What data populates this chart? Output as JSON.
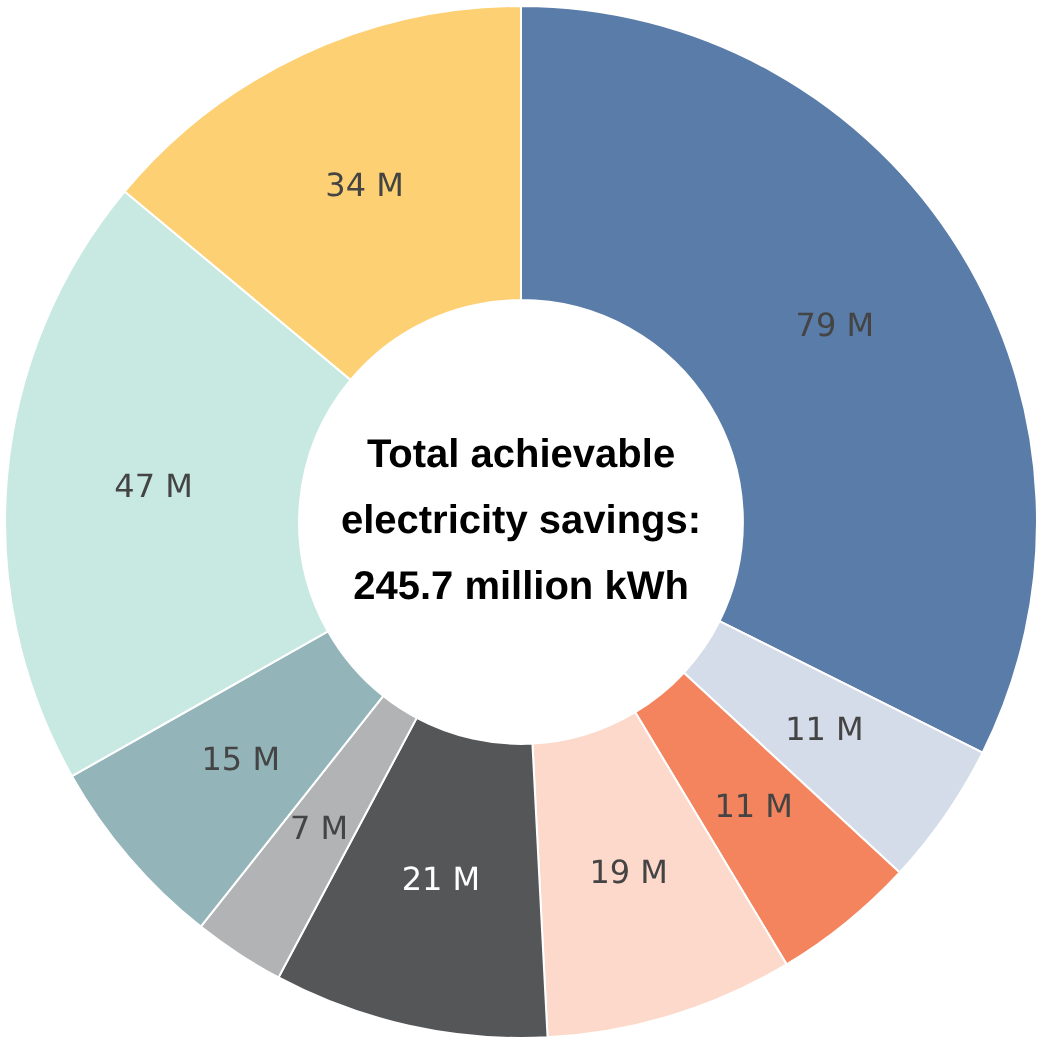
{
  "chart_data": {
    "type": "donut",
    "title": "Total achievable electricity savings: 245.7 million kWh",
    "categories": [
      null,
      null,
      null,
      null,
      null,
      null,
      null,
      null,
      null
    ],
    "values": [
      79,
      11,
      11,
      19,
      21,
      7,
      15,
      47,
      34
    ],
    "value_labels": [
      "79 M",
      "11 M",
      "11 M",
      "19 M",
      "21 M",
      "7 M",
      "15 M",
      "47 M",
      "34 M"
    ],
    "colors": [
      "#5a7ca8",
      "#d3dce8",
      "#f4845e",
      "#fdd9cc",
      "#555658",
      "#b2b3b5",
      "#93b5b9",
      "#c8e9e1",
      "#fdd073"
    ],
    "legend": false
  }
}
